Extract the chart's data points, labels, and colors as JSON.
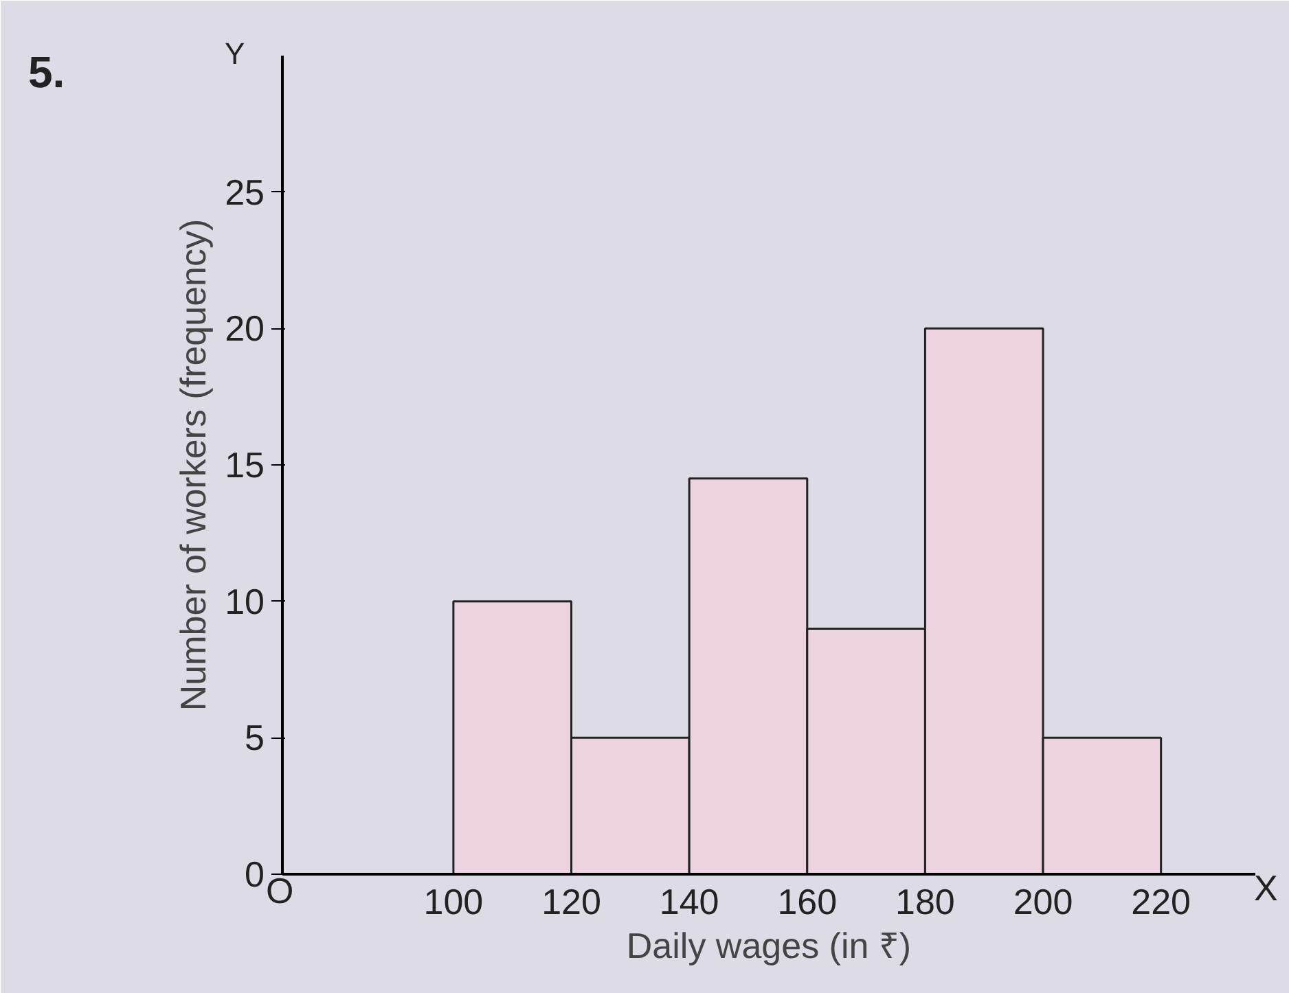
{
  "chart_data": {
    "type": "histogram",
    "xlabel": "Daily wages (in ₹)",
    "ylabel": "Number of workers (frequency)",
    "bins": [
      100,
      120,
      140,
      160,
      180,
      200,
      220
    ],
    "values": [
      10,
      5,
      14.5,
      9,
      20,
      5
    ],
    "color": "#ecd3df",
    "xlim": [
      71,
      236
    ],
    "xticks": [
      100,
      120,
      140,
      160,
      180,
      200,
      220
    ],
    "ylim": [
      0,
      30
    ],
    "yticks": [
      0,
      5,
      10,
      15,
      20,
      25
    ],
    "grid": false,
    "annotations": [
      "5.",
      "O",
      "X",
      "Y"
    ]
  }
}
